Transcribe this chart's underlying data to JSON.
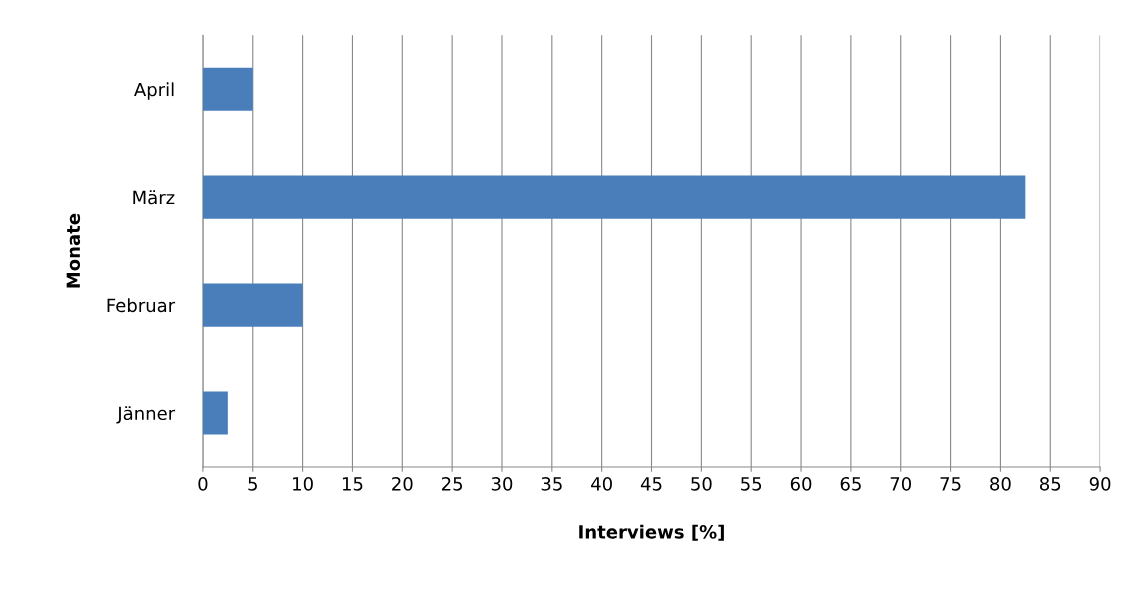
{
  "chart_data": {
    "type": "bar",
    "orientation": "horizontal",
    "xlabel": "Interviews [%]",
    "ylabel": "Monate",
    "categories": [
      "April",
      "März",
      "Februar",
      "Jänner"
    ],
    "values": [
      5,
      82.5,
      10,
      2.5
    ],
    "color": "#4a7ebb",
    "xlim": [
      0,
      90
    ],
    "xticks": [
      0,
      5,
      10,
      15,
      20,
      25,
      30,
      35,
      40,
      45,
      50,
      55,
      60,
      65,
      70,
      75,
      80,
      85,
      90
    ],
    "grid": "x"
  }
}
